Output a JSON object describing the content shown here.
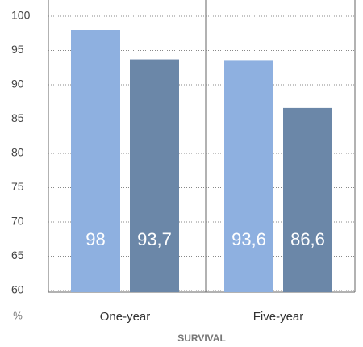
{
  "chart_data": {
    "type": "bar",
    "xlabel": "SURVIVAL",
    "ylabel": "%",
    "categories": [
      "One-year",
      "Five-year"
    ],
    "series": [
      {
        "color": "#8eb0e0",
        "values": [
          98,
          93.6
        ],
        "value_labels": [
          "98",
          "93,6"
        ]
      },
      {
        "color": "#6b87a8",
        "values": [
          93.7,
          86.6
        ],
        "value_labels": [
          "93,7",
          "86,6"
        ]
      }
    ],
    "ylim": [
      60,
      100
    ],
    "yticks": [
      60,
      65,
      70,
      75,
      80,
      85,
      90,
      95,
      100
    ],
    "grid": true
  }
}
